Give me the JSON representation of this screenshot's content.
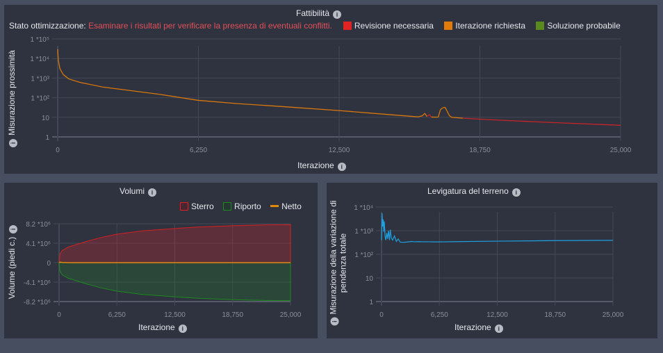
{
  "feasibility": {
    "title": "Fattibilità",
    "status_label": "Stato ottimizzazione:",
    "status_text": "Esaminare i risultati per verificare la presenza di eventuali conflitti.",
    "legend": [
      {
        "label": "Revisione necessaria",
        "color": "#e02424"
      },
      {
        "label": "Iterazione richiesta",
        "color": "#e07b0c"
      },
      {
        "label": "Soluzione probabile",
        "color": "#5a8a1e"
      }
    ],
    "ylabel": "Misurazione prossimità",
    "xlabel": "Iterazione"
  },
  "volumes": {
    "title": "Volumi",
    "legend": [
      {
        "label": "Sterro",
        "color": "#d42020"
      },
      {
        "label": "Riporto",
        "color": "#1e8a1e"
      },
      {
        "label": "Netto",
        "color": "#e08a0c"
      }
    ],
    "ylabel": "Volume (piedi c.)",
    "xlabel": "Iterazione"
  },
  "smoothing": {
    "title": "Levigatura del terreno",
    "ylabel_1": "Misurazione della variazione di",
    "ylabel_2": "pendenza totale",
    "xlabel": "Iterazione"
  },
  "chart_data": [
    {
      "type": "line",
      "title": "Fattibilità",
      "xlabel": "Iterazione",
      "ylabel": "Misurazione prossimità",
      "yscale": "log",
      "xlim": [
        0,
        25000
      ],
      "ylim": [
        1,
        100000
      ],
      "xticks": [
        "0",
        "6,250",
        "12,500",
        "18,750",
        "25,000"
      ],
      "yticks": [
        "1",
        "10",
        "1 *10²",
        "1 *10³",
        "1 *10⁴",
        "1 *10⁵"
      ],
      "series": [
        {
          "name": "proximity",
          "x": [
            0,
            30,
            100,
            250,
            500,
            1000,
            2000,
            3000,
            4500,
            6250,
            8000,
            10000,
            12500,
            14000,
            16000,
            16200,
            16300,
            16400,
            16500,
            16600,
            16700,
            16900,
            17000,
            17100,
            17200,
            17300,
            17400,
            17500,
            18000,
            18750,
            20000,
            22000,
            25000
          ],
          "y": [
            30000,
            8000,
            3000,
            1500,
            900,
            600,
            350,
            250,
            150,
            73,
            50,
            35,
            22,
            16,
            10.5,
            12,
            16,
            11,
            14,
            10.3,
            10.2,
            10.2,
            25,
            30,
            33,
            20,
            12,
            10,
            9,
            8,
            6.8,
            5.4,
            3.9
          ],
          "status": [
            "o",
            "o",
            "o",
            "o",
            "o",
            "o",
            "o",
            "o",
            "o",
            "o",
            "o",
            "o",
            "o",
            "o",
            "o",
            "o",
            "o",
            "o",
            "r",
            "r",
            "o",
            "o",
            "o",
            "o",
            "o",
            "o",
            "o",
            "o",
            "o",
            "r",
            "r",
            "r",
            "r"
          ]
        }
      ]
    },
    {
      "type": "area",
      "title": "Volumi",
      "xlabel": "Iterazione",
      "ylabel": "Volume (piedi c.)",
      "xlim": [
        0,
        25000
      ],
      "ylim": [
        -8200000,
        8200000
      ],
      "xticks": [
        "0",
        "6,250",
        "12,500",
        "18,750",
        "25,000"
      ],
      "yticks": [
        "-8.2 *10⁶",
        "-4.1 *10⁶",
        "0",
        "4.1 *10⁶",
        "8.2 *10⁶"
      ],
      "x": [
        0,
        100,
        300,
        1000,
        2000,
        3000,
        4500,
        6250,
        9000,
        12500,
        15000,
        18750,
        22000,
        25000
      ],
      "series": [
        {
          "name": "Sterro",
          "values": [
            0,
            1800000,
            2500000,
            3300000,
            3900000,
            4500000,
            5300000,
            6000000,
            6700000,
            7200000,
            7500000,
            7800000,
            7950000,
            8000000
          ]
        },
        {
          "name": "Riporto",
          "values": [
            0,
            -1800000,
            -2500000,
            -3300000,
            -3900000,
            -4500000,
            -5300000,
            -6000000,
            -6700000,
            -7200000,
            -7500000,
            -7800000,
            -7950000,
            -8000000
          ]
        },
        {
          "name": "Netto",
          "values": [
            0,
            100000,
            50000,
            0,
            0,
            0,
            0,
            0,
            0,
            0,
            0,
            0,
            0,
            0
          ]
        }
      ]
    },
    {
      "type": "line",
      "title": "Levigatura del terreno",
      "xlabel": "Iterazione",
      "ylabel": "Misurazione della variazione di pendenza totale",
      "yscale": "log",
      "xlim": [
        0,
        25000
      ],
      "ylim": [
        1,
        10000
      ],
      "xticks": [
        "0",
        "6,250",
        "12,500",
        "18,750",
        "25,000"
      ],
      "yticks": [
        "1",
        "10",
        "1 *10²",
        "1 *10³",
        "1 *10⁴"
      ],
      "series": [
        {
          "name": "smoothness",
          "x": [
            0,
            60,
            120,
            180,
            240,
            300,
            380,
            460,
            560,
            650,
            750,
            850,
            950,
            1050,
            1200,
            1400,
            1600,
            1800,
            2000,
            2300,
            2700,
            3200,
            3600,
            4000,
            4500,
            5000,
            6000,
            8000,
            12500,
            18750,
            25000
          ],
          "y": [
            400,
            5500,
            1500,
            3000,
            900,
            2500,
            600,
            400,
            800,
            450,
            1000,
            400,
            1100,
            500,
            400,
            600,
            350,
            450,
            330,
            320,
            330,
            350,
            340,
            345,
            340,
            340,
            335,
            345,
            360,
            380,
            390
          ]
        }
      ]
    }
  ]
}
